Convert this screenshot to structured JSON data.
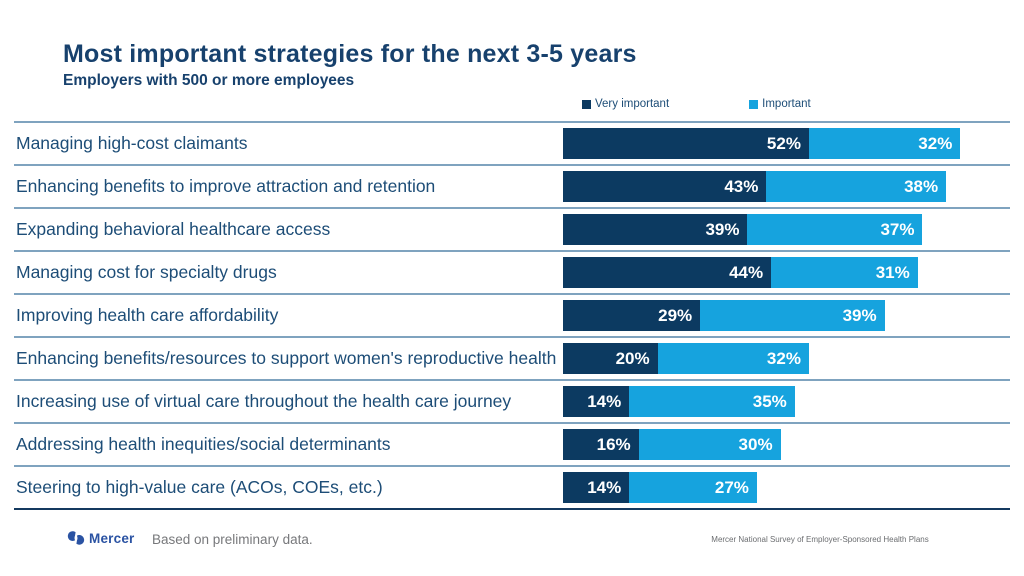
{
  "slide": {
    "title": "Most important strategies for the next 3-5 years",
    "subtitle": "Employers with 500 or more employees"
  },
  "legend": [
    {
      "label": "Very important",
      "color": "#0c3a61"
    },
    {
      "label": "Important",
      "color": "#16a3de"
    }
  ],
  "chart_data": {
    "type": "bar",
    "orientation": "horizontal",
    "stacked": true,
    "title": "Most important strategies for the next 3-5 years",
    "subtitle": "Employers with 500 or more employees",
    "value_suffix": "%",
    "xlim": [
      0,
      94.5
    ],
    "grid": false,
    "legend_position": "top",
    "categories": [
      "Managing high-cost claimants",
      "Enhancing benefits to improve attraction and retention",
      "Expanding behavioral healthcare access",
      "Managing cost for specialty drugs",
      "Improving health care affordability",
      "Enhancing benefits/resources to support women's reproductive health",
      "Increasing use of virtual care throughout the health care journey",
      "Addressing health inequities/social determinants",
      "Steering to high-value care (ACOs, COEs, etc.)"
    ],
    "series": [
      {
        "name": "Very important",
        "color": "#0c3a61",
        "values": [
          52,
          43,
          39,
          44,
          29,
          20,
          14,
          16,
          14
        ]
      },
      {
        "name": "Important",
        "color": "#16a3de",
        "values": [
          32,
          38,
          37,
          31,
          39,
          32,
          35,
          30,
          27
        ]
      }
    ]
  },
  "footer": {
    "logo_text": "Mercer",
    "note": "Based on preliminary data.",
    "source": "Mercer National Survey of Employer-Sponsored Health Plans"
  },
  "colors": {
    "title_navy": "#17416d",
    "label_navy": "#1d4d77",
    "bar_dark": "#0c3a61",
    "bar_light": "#16a3de",
    "divider_steel": "#7fa3bf",
    "divider_bottom": "#14395f",
    "logo_blue": "#2b53a3",
    "footer_gray": "#77787b"
  }
}
